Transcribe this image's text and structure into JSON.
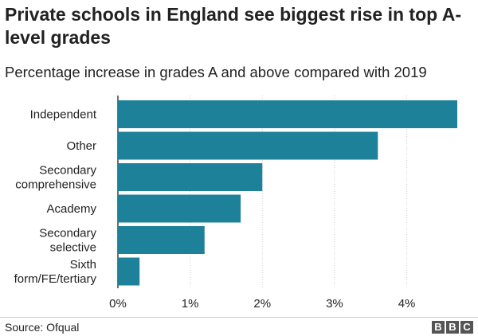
{
  "header": {
    "title": "Private schools in England see biggest rise in top A-level grades",
    "subtitle": "Percentage increase in grades A and above compared with 2019"
  },
  "footer": {
    "source": "Source: Ofqual",
    "logo_letters": [
      "B",
      "B",
      "C"
    ]
  },
  "colors": {
    "bar": "#1d8199",
    "grid": "#cccccc",
    "axis": "#444444",
    "text": "#222222"
  },
  "chart_data": {
    "type": "bar",
    "orientation": "horizontal",
    "title": "Private schools in England see biggest rise in top A-level grades",
    "subtitle": "Percentage increase in grades A and above compared with 2019",
    "categories": [
      [
        "Independent"
      ],
      [
        "Other"
      ],
      [
        "Secondary",
        "comprehensive"
      ],
      [
        "Academy"
      ],
      [
        "Secondary",
        "selective"
      ],
      [
        "Sixth",
        "form/FE/tertiary"
      ]
    ],
    "values": [
      4.7,
      3.6,
      2.0,
      1.7,
      1.2,
      0.3
    ],
    "unit": "%",
    "xlim": [
      0,
      4.7
    ],
    "xticks": [
      0,
      1,
      2,
      3,
      4
    ],
    "xtick_labels": [
      "0%",
      "1%",
      "2%",
      "3%",
      "4%"
    ],
    "grid": "vertical dotted",
    "legend": "none"
  }
}
